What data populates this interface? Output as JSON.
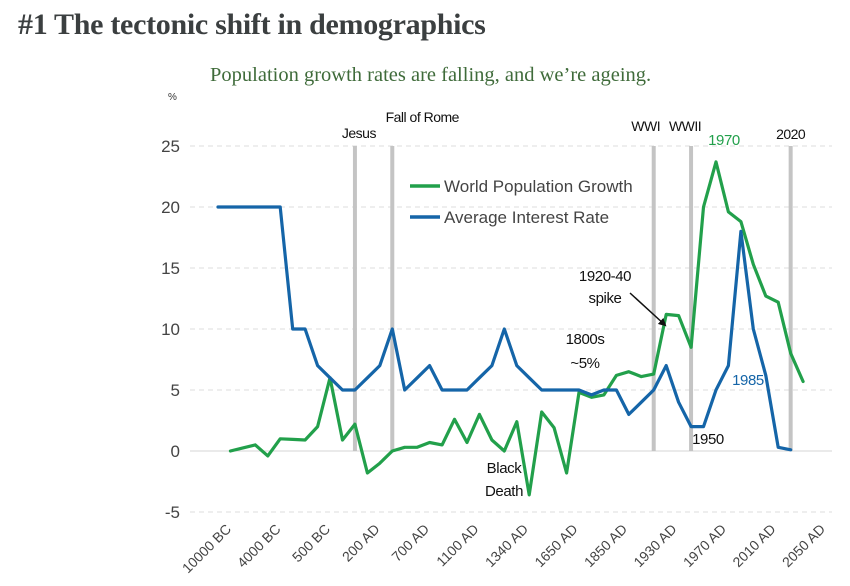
{
  "title": "#1 The tectonic shift in demographics",
  "subtitle": "Population growth rates are falling, and we’re ageing.",
  "chart_data": {
    "type": "line",
    "title": "Population growth rates are falling, and we’re ageing.",
    "xlabel": "",
    "ylabel": "%",
    "ylim": [
      -5,
      25
    ],
    "yticks": [
      25,
      20,
      15,
      10,
      5,
      0,
      -5
    ],
    "grid": true,
    "legend_position": "top-center",
    "x_tick_labels": [
      "10000 BC",
      "4000 BC",
      "500 BC",
      "200 AD",
      "700 AD",
      "1100 AD",
      "1340 AD",
      "1650 AD",
      "1850 AD",
      "1930 AD",
      "1970 AD",
      "2010 AD",
      "2050 AD"
    ],
    "x_points": 50,
    "series": [
      {
        "name": "World Population Growth",
        "color": "#22a04b",
        "start_index": 1,
        "values": [
          0,
          0.25,
          0.5,
          -0.4,
          1,
          0.95,
          0.9,
          2,
          6,
          0.9,
          2.2,
          -1.8,
          -1.0,
          0,
          0.3,
          0.3,
          0.7,
          0.5,
          2.6,
          0.7,
          3,
          0.9,
          0,
          2.4,
          -3.6,
          3.2,
          1.9,
          -1.8,
          4.8,
          4.4,
          4.6,
          6.2,
          6.5,
          6.1,
          6.3,
          11.2,
          11.1,
          8.5,
          20,
          23.7,
          19.6,
          18.8,
          15.3,
          12.7,
          12.2,
          8,
          5.7
        ]
      },
      {
        "name": "Average Interest Rate",
        "color": "#1565a8",
        "start_index": 0,
        "values": [
          20,
          20,
          20,
          20,
          20,
          20,
          10,
          10,
          7,
          6,
          5,
          5,
          6,
          7,
          10,
          5,
          6,
          7,
          5,
          5,
          5,
          6,
          7,
          10,
          7,
          6,
          5,
          5,
          5,
          5,
          4.6,
          5,
          5,
          3,
          4,
          5,
          7,
          4,
          2,
          2,
          5,
          7,
          18,
          10,
          6.2,
          0.3,
          0.1
        ]
      }
    ],
    "event_markers": [
      {
        "label": "Jesus",
        "index": 11
      },
      {
        "label": "Fall of Rome",
        "index": 14
      },
      {
        "label": "WWI",
        "index": 35
      },
      {
        "label": "WWII",
        "index": 38
      },
      {
        "label": "2020",
        "index": 46
      }
    ],
    "annotations": [
      {
        "text": "1970",
        "color": "#22a04b"
      },
      {
        "text": "1985",
        "color": "#1565a8"
      },
      {
        "text": "1950",
        "color": "#111111"
      },
      {
        "text": "Black",
        "color": "#111111"
      },
      {
        "text": "Death",
        "color": "#111111"
      },
      {
        "text": "1800s",
        "color": "#111111"
      },
      {
        "text": "~5%",
        "color": "#111111"
      },
      {
        "text": "1920-40",
        "color": "#111111"
      },
      {
        "text": "spike",
        "color": "#111111"
      }
    ]
  }
}
